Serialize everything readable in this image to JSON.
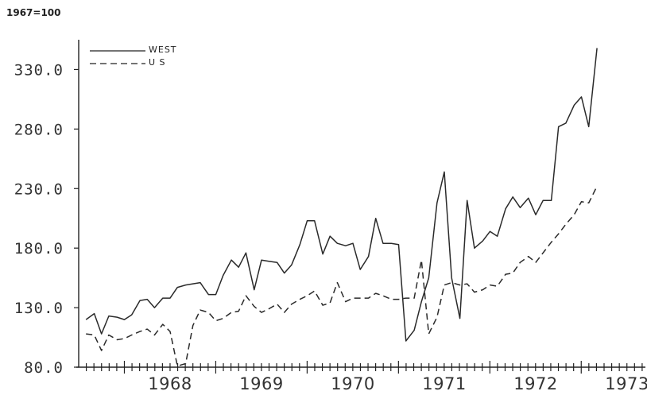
{
  "page": {
    "index_note": "1967=100"
  },
  "chart_data": {
    "type": "line",
    "title": "",
    "xlabel": "",
    "ylabel": "",
    "index_base": "1967=100",
    "ylim": [
      80,
      355
    ],
    "xlim": [
      1967.5,
      1973.7
    ],
    "y_ticks": [
      "80.0",
      "130.0",
      "180.0",
      "230.0",
      "280.0",
      "330.0"
    ],
    "x_ticks": [
      "1968",
      "1969",
      "1970",
      "1971",
      "1972",
      "1973"
    ],
    "x_minor_tick_interval": 0.0833,
    "grid": false,
    "legend": {
      "placement": "top-left",
      "entries": [
        {
          "label": "WEST",
          "style": "solid"
        },
        {
          "label": "U S",
          "style": "dashed"
        }
      ]
    },
    "series": [
      {
        "name": "WEST",
        "style": "solid",
        "x": [
          1967.58,
          1967.67,
          1967.75,
          1967.83,
          1967.92,
          1968.0,
          1968.08,
          1968.17,
          1968.25,
          1968.33,
          1968.42,
          1968.5,
          1968.58,
          1968.67,
          1968.75,
          1968.83,
          1968.92,
          1969.0,
          1969.08,
          1969.17,
          1969.25,
          1969.33,
          1969.42,
          1969.5,
          1969.58,
          1969.67,
          1969.75,
          1969.83,
          1969.92,
          1970.0,
          1970.08,
          1970.17,
          1970.25,
          1970.33,
          1970.42,
          1970.5,
          1970.58,
          1970.67,
          1970.75,
          1970.83,
          1970.92,
          1971.0,
          1971.08,
          1971.17,
          1971.25,
          1971.33,
          1971.42,
          1971.5,
          1971.58,
          1971.67,
          1971.75,
          1971.83,
          1971.92,
          1972.0,
          1972.08,
          1972.17,
          1972.25,
          1972.33,
          1972.42,
          1972.5,
          1972.58,
          1972.67,
          1972.75,
          1972.83,
          1972.92,
          1973.0,
          1973.08,
          1973.17
        ],
        "values": [
          120,
          125,
          108,
          123,
          122,
          120,
          124,
          136,
          137,
          130,
          138,
          138,
          147,
          149,
          150,
          151,
          141,
          141,
          157,
          170,
          164,
          176,
          145,
          170,
          169,
          168,
          159,
          166,
          183,
          203,
          203,
          175,
          190,
          184,
          182,
          184,
          162,
          173,
          205,
          184,
          184,
          183,
          102,
          111,
          135,
          155,
          218,
          244,
          155,
          121,
          220,
          180,
          186,
          194,
          190,
          213,
          223,
          214,
          222,
          208,
          220,
          220,
          282,
          285,
          300,
          307,
          282,
          348
        ]
      },
      {
        "name": "U S",
        "style": "dashed",
        "x": [
          1967.58,
          1967.67,
          1967.75,
          1967.83,
          1967.92,
          1968.0,
          1968.08,
          1968.17,
          1968.25,
          1968.33,
          1968.42,
          1968.5,
          1968.58,
          1968.67,
          1968.75,
          1968.83,
          1968.92,
          1969.0,
          1969.08,
          1969.17,
          1969.25,
          1969.33,
          1969.42,
          1969.5,
          1969.58,
          1969.67,
          1969.75,
          1969.83,
          1969.92,
          1970.0,
          1970.08,
          1970.17,
          1970.25,
          1970.33,
          1970.42,
          1970.5,
          1970.58,
          1970.67,
          1970.75,
          1970.83,
          1970.92,
          1971.0,
          1971.08,
          1971.17,
          1971.25,
          1971.33,
          1971.42,
          1971.5,
          1971.58,
          1971.67,
          1971.75,
          1971.83,
          1971.92,
          1972.0,
          1972.08,
          1972.17,
          1972.25,
          1972.33,
          1972.42,
          1972.5,
          1972.58,
          1972.67,
          1972.75,
          1972.83,
          1972.92,
          1973.0,
          1973.08,
          1973.17
        ],
        "values": [
          108,
          107,
          94,
          107,
          103,
          104,
          107,
          110,
          112,
          107,
          116,
          110,
          81,
          83,
          115,
          128,
          126,
          119,
          121,
          126,
          127,
          140,
          131,
          126,
          129,
          133,
          126,
          133,
          137,
          140,
          144,
          132,
          134,
          151,
          135,
          138,
          138,
          138,
          142,
          140,
          137,
          137,
          138,
          138,
          170,
          108,
          122,
          149,
          151,
          149,
          150,
          143,
          145,
          149,
          148,
          158,
          159,
          168,
          173,
          168,
          176,
          185,
          192,
          200,
          208,
          219,
          218,
          232
        ]
      }
    ]
  }
}
